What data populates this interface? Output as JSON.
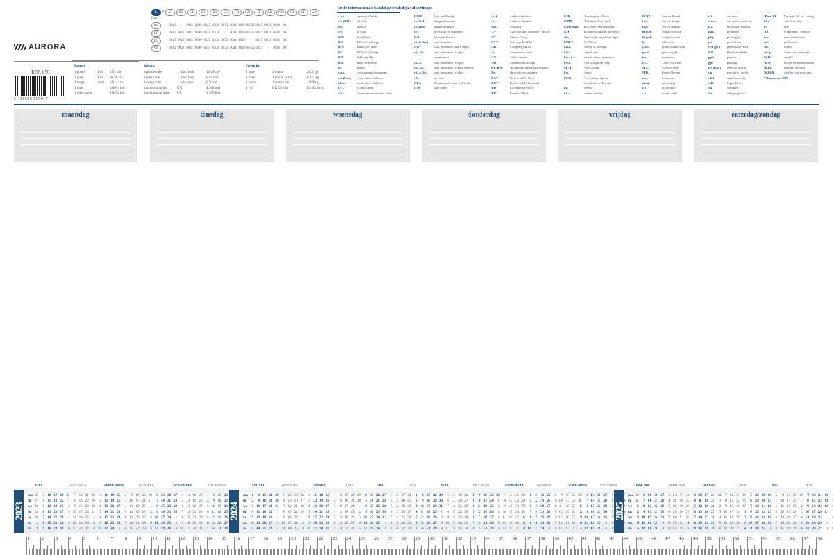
{
  "brand": {
    "name": "AURORA",
    "ref": "REF. 0501",
    "barcode": "5 411028 555017"
  },
  "countries": {
    "from_label": "from",
    "to_label": "to",
    "selected": "L",
    "header": [
      "AT",
      "BE",
      "CH",
      "DE",
      "DK",
      "ES",
      "FR",
      "GB",
      "IT",
      "LU",
      "NO",
      "NL",
      "SE",
      "UA"
    ],
    "rows": [
      {
        "code": "BE",
        "values": [
          "0043",
          "-",
          "0041",
          "0049",
          "0045",
          "0034",
          "0033",
          "0044",
          "0039",
          "00352",
          "0047",
          "0031",
          "0046",
          "001"
        ]
      },
      {
        "code": "FR",
        "values": [
          "0043",
          "0032",
          "0041",
          "0049",
          "0045",
          "0034",
          "-",
          "0044",
          "0039",
          "00352",
          "0047",
          "0031",
          "0046",
          "001"
        ]
      },
      {
        "code": "LU",
        "values": [
          "0043",
          "0032",
          "0041",
          "0049",
          "0045",
          "0034",
          "0033",
          "0044",
          "0039",
          "-",
          "0047",
          "0031",
          "0046",
          "001"
        ]
      },
      {
        "code": "NL",
        "values": [
          "0043",
          "0032",
          "0041",
          "0049",
          "0045",
          "0034",
          "0033",
          "0044",
          "0039",
          "00352",
          "0047",
          "-",
          "0046",
          "001"
        ]
      }
    ]
  },
  "conversions": [
    {
      "title": "Lengte",
      "rows": [
        [
          "1 pouce",
          "1 inch",
          "2,54 cm"
        ],
        [
          "1 pied",
          "1 foot",
          "30,48 cm"
        ],
        [
          "1 verge",
          "1 yard",
          "0,9143 m"
        ],
        [
          "1 mile",
          "",
          "1,6093 km"
        ],
        [
          "1 mile marin",
          "",
          "1,8532 km"
        ]
      ]
    },
    {
      "title": "Inhoud",
      "rows": [
        [
          "1 pouce cube",
          "1 cubic inch",
          "16,39 cm³"
        ],
        [
          "1 pied cube",
          "1 cubic foot",
          "0.03 cm³"
        ],
        [
          "1 verge cube",
          "1 cubic yard",
          "0,76 m³"
        ],
        [
          "1 gallon impérial",
          "UK",
          "4,546 liter"
        ],
        [
          "1 gallon américain",
          "US",
          "3,785 liter"
        ]
      ]
    },
    {
      "title": "Gewicht",
      "rows": [
        [
          "1 once",
          "1 ounce",
          "28,35 gr"
        ],
        [
          "1 livre",
          "1 pound (1 lb)",
          "0,453 kg"
        ],
        [
          "1 tonne",
          "1 metric ton",
          "1000 kg"
        ],
        [
          "1 cwt",
          "UK 50,8 kg",
          "US 45,36 kg"
        ]
      ]
    }
  ],
  "abbreviations": {
    "title": "In de internationale handel gebruikelijke afkortingen",
    "columns": [
      [
        [
          "a.a.r",
          "against all risks"
        ],
        [
          "a/c (A/R)",
          "all risks"
        ],
        [
          "arr.",
          "arrival"
        ],
        [
          "a/v",
          "a vista"
        ],
        [
          "B/D",
          "bank draft"
        ],
        [
          "B/E",
          "Bill of Exchange"
        ],
        [
          "B/N",
          "brutto for netto"
        ],
        [
          "B/L",
          "Bill(s) of lading"
        ],
        [
          "B/P",
          "bills payable"
        ],
        [
          "B/R",
          "bills receivable"
        ],
        [
          "bc",
          "brutto"
        ],
        [
          "c.a.d.",
          "cash against documents"
        ],
        [
          "c.d.(C.d.)",
          "cash before delivery"
        ],
        [
          "c.b.d.",
          "cash before delivery"
        ],
        [
          "C/C",
          "Clean Credit"
        ],
        [
          "c.d.a.",
          "commissionaire direct after"
        ]
      ],
      [
        [
          "CFR*",
          "Cost and Freight"
        ],
        [
          "ch. fwd.",
          "charges forward"
        ],
        [
          "ch. ppd.",
          "charges prepaid"
        ],
        [
          "c/i",
          "certificate of insurance"
        ],
        [
          "C.I.",
          "Consular Invoice"
        ],
        [
          "c.i. (c.&i.)",
          "cost insurance"
        ],
        [
          "CIF*",
          "Cost, Insurance and Freight"
        ],
        [
          "c.i.f.&c.",
          "cost, insurance, freight,"
        ],
        [
          "",
          "commission"
        ],
        [
          "c.i.f.i.",
          "cost, insurance, freight,"
        ],
        [
          "c.i.f.&i.",
          "cost, insurance, freight, interest"
        ],
        [
          "c.i.f.c.&i.",
          "cost, insurance, freight"
        ],
        [
          "c.l.",
          "car load"
        ],
        [
          "CLC",
          "Commercial Letter of Credit"
        ],
        [
          "C/O",
          "cash order"
        ],
        [
          "",
          ""
        ]
      ],
      [
        [
          "c.o.d.",
          "cash on delivery"
        ],
        [
          "c.o.s.",
          "cash on shipment"
        ],
        [
          "cont.",
          "courtage"
        ],
        [
          "CP*",
          "Carriage and Insurance Paid to"
        ],
        [
          "CP",
          "Charter Party"
        ],
        [
          "CPT*",
          "Carriage Paid To"
        ],
        [
          "C/R",
          "Company's Risk"
        ],
        [
          "c.t.",
          "continuous terms"
        ],
        [
          "C.T.",
          "cable transfer"
        ],
        [
          "c/m",
          "commercial receipt"
        ],
        [
          "d/a (D/A)",
          "documents against acceptance"
        ],
        [
          "D/s",
          "days after acceptance"
        ],
        [
          "DAP*",
          "Delivered At Place"
        ],
        [
          "DAT*",
          "Delivered At Terminal"
        ],
        [
          "D/R",
          "Documentary Bill"
        ],
        [
          "D/D",
          "Demand Draft"
        ]
      ],
      [
        [
          "D/D",
          "Documentary Draft"
        ],
        [
          "DDP*",
          "Delivered Duty Paid"
        ],
        [
          "DD&Shpg.",
          "dock dues and shipping"
        ],
        [
          "D/P",
          "documents against payment"
        ],
        [
          "d/s",
          "day's sight, days after sight"
        ],
        [
          "EXW*",
          "Ex Works"
        ],
        [
          "f.a.a.",
          "free of all average"
        ],
        [
          "f.a.s.",
          "free as can"
        ],
        [
          "f.a.s.a.s.",
          "free as can as customary"
        ],
        [
          "FAS*",
          "Free Alongside Ship"
        ],
        [
          "FCA*",
          "Free Carrier"
        ],
        [
          "f.o.",
          "franco"
        ],
        [
          "FCR",
          "Forwarding Agents"
        ],
        [
          "",
          "Certificate of Receipt"
        ],
        [
          "f.i.",
          "free in"
        ],
        [
          "f.i.o.",
          "free in and out"
        ]
      ],
      [
        [
          "FOB*",
          "Free on Board"
        ],
        [
          "f.o.c.",
          "free of charge"
        ],
        [
          "f.o.d.",
          "free of damage"
        ],
        [
          "fit.fwd.",
          "freight forward"
        ],
        [
          "fit.ppd.",
          "freight prepaid"
        ],
        [
          "ft.",
          "full terms"
        ],
        [
          "g.b.o.",
          "goods in bad order"
        ],
        [
          "gr.wt.",
          "gross weight"
        ],
        [
          "ins.",
          "insurance"
        ],
        [
          "L/C",
          "Letter of Credit"
        ],
        [
          "M.O.",
          "Money Order"
        ],
        [
          "M.R.",
          "Mate's Receipt"
        ],
        [
          "n.n.",
          "netto netto"
        ],
        [
          "nt.wt.",
          "net weight"
        ],
        [
          "o/a",
          "on account"
        ],
        [
          "o.r.",
          "owner's risk"
        ]
      ],
      [
        [
          "o/t",
          "on truck"
        ],
        [
          "o/r.o.s.",
          "on truck or railway"
        ],
        [
          "p.a.",
          "particular average"
        ],
        [
          "pqn.",
          "payment"
        ],
        [
          "pkg.",
          "package(s)"
        ],
        [
          "p.t.",
          "partial loss"
        ],
        [
          "P/N (pn)",
          "promissory note"
        ],
        [
          "P.O.",
          "Purchase Order"
        ],
        [
          "ppd.",
          "prepaid"
        ],
        [
          "ppt.",
          "prompt"
        ],
        [
          "r/d (R/D)",
          "refer to drawer"
        ],
        [
          "r.g.",
          "receipt of goods"
        ],
        [
          "s.b.l.",
          "said bonne fin"
        ],
        [
          "S.D.",
          "Sight Draft"
        ],
        [
          "Sh.",
          "shipment"
        ],
        [
          "S/n",
          "shipping note"
        ]
      ],
      [
        [
          "Thru B/L",
          "Through Bill of Lading"
        ],
        [
          "t.l.o.",
          "total loss only"
        ],
        [
          "tr.",
          "tare"
        ],
        [
          "TT",
          "Telegraphic Transfer"
        ],
        [
          "u.c.",
          "usual conditions"
        ],
        [
          "u/w",
          "underwriter"
        ],
        [
          "val.",
          "Valuta"
        ],
        [
          "val.p.",
          "valeur per, value per"
        ],
        [
          "W/B",
          "waybill"
        ],
        [
          "W/M",
          "weight or measurement"
        ],
        [
          "W/R",
          "Warrant Receipt"
        ],
        [
          "W.W.D.",
          "weather working days"
        ],
        [
          "* Incoterms 1990",
          ""
        ]
      ]
    ]
  },
  "week": [
    "maandag",
    "dinsdag",
    "woensdag",
    "donderdag",
    "vrijdag",
    "zaterdag/zondag"
  ],
  "calendar": {
    "weekdays": [
      "ma",
      "di",
      "wo",
      "do",
      "vr",
      "za",
      "zo"
    ],
    "blocks": [
      {
        "year": "2023",
        "months": [
          "JULI",
          "AUGUSTUS",
          "SEPTEMBER",
          "OKTOBER",
          "NOVEMBER",
          "DECEMBER"
        ]
      },
      {
        "year": "2024",
        "months": [
          "JANUARI",
          "FEBRUARI",
          "MAART",
          "APRIL",
          "MEI",
          "JUNI",
          "JULI",
          "AUGUSTUS",
          "SEPTEMBER",
          "OKTOBER",
          "NOVEMBER",
          "DECEMBER"
        ]
      },
      {
        "year": "2025",
        "months": [
          "JANUARI",
          "FEBRUARI",
          "MAART",
          "APRIL",
          "MEI",
          "JUNI"
        ]
      }
    ]
  },
  "ruler": {
    "start": 1,
    "end": 58
  }
}
